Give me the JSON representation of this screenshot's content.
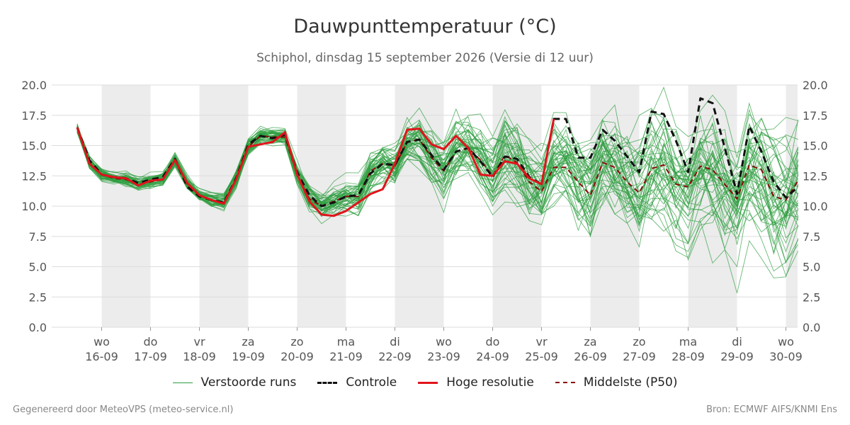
{
  "header": {
    "title": "Dauwpunttemperatuur (°C)",
    "subtitle": "Schiphol, dinsdag 15 september 2026 (Versie di 12 uur)"
  },
  "footer": {
    "left": "Gegenereerd door MeteoVPS (meteo-service.nl)",
    "right": "Bron: ECMWF AIFS/KNMI Ens"
  },
  "legend": [
    {
      "key": "ens",
      "label": "Verstoorde runs"
    },
    {
      "key": "control",
      "label": "Controle"
    },
    {
      "key": "hires",
      "label": "Hoge resolutie"
    },
    {
      "key": "p50",
      "label": "Middelste (P50)"
    }
  ],
  "colors": {
    "ensemble": "#2e9e40",
    "control": "#111111",
    "hires": "#e0141c",
    "p50": "#8b0a0a",
    "weekend_band": "#ececec",
    "grid": "#dddddd"
  },
  "chart_data": {
    "type": "line",
    "title": "Dauwpunttemperatuur (°C)",
    "ylim": [
      0,
      20
    ],
    "yticks": [
      "0.0",
      "2.5",
      "5.0",
      "7.5",
      "10.0",
      "12.5",
      "15.0",
      "17.5",
      "20.0"
    ],
    "x_start": "15-09 18u",
    "x_step_hours": 6,
    "day_ticks": [
      {
        "day": "wo",
        "date": "16-09"
      },
      {
        "day": "do",
        "date": "17-09"
      },
      {
        "day": "vr",
        "date": "18-09"
      },
      {
        "day": "za",
        "date": "19-09"
      },
      {
        "day": "zo",
        "date": "20-09"
      },
      {
        "day": "ma",
        "date": "21-09"
      },
      {
        "day": "di",
        "date": "22-09"
      },
      {
        "day": "wo",
        "date": "23-09"
      },
      {
        "day": "do",
        "date": "24-09"
      },
      {
        "day": "vr",
        "date": "25-09"
      },
      {
        "day": "za",
        "date": "26-09"
      },
      {
        "day": "zo",
        "date": "27-09"
      },
      {
        "day": "ma",
        "date": "28-09"
      },
      {
        "day": "di",
        "date": "29-09"
      },
      {
        "day": "wo",
        "date": "30-09"
      }
    ],
    "series": [
      {
        "name": "Controle",
        "style": "dashed-black",
        "values": [
          16.5,
          13.8,
          12.6,
          12.4,
          12.3,
          11.9,
          12.2,
          12.4,
          13.9,
          11.6,
          10.8,
          10.5,
          10.3,
          12.3,
          15.1,
          15.8,
          15.6,
          15.9,
          12.8,
          10.9,
          10.0,
          10.3,
          10.8,
          10.9,
          12.7,
          13.5,
          13.4,
          15.3,
          15.5,
          14.2,
          13.0,
          14.5,
          14.8,
          13.7,
          12.4,
          14.1,
          13.9,
          12.4,
          11.8,
          17.2,
          17.2,
          14.0,
          14.0,
          16.3,
          15.4,
          14.1,
          12.8,
          17.8,
          17.6,
          15.4,
          12.8,
          18.9,
          18.5,
          14.8,
          11.0,
          16.6,
          14.5,
          12.0,
          10.7,
          11.6
        ]
      },
      {
        "name": "Hoge resolutie",
        "style": "solid-red",
        "values": [
          16.5,
          13.5,
          12.6,
          12.4,
          12.3,
          11.7,
          12.1,
          12.2,
          13.8,
          11.9,
          10.9,
          10.5,
          10.2,
          12.2,
          14.9,
          15.1,
          15.3,
          16.1,
          12.6,
          10.4,
          9.3,
          9.2,
          9.6,
          10.3,
          11.0,
          11.4,
          13.5,
          16.3,
          16.4,
          15.1,
          14.7,
          15.8,
          14.8,
          12.6,
          12.5,
          13.7,
          13.5,
          12.3,
          11.8,
          17.2
        ]
      },
      {
        "name": "Middelste (P50)",
        "style": "dashed-darkred",
        "values": [
          16.4,
          13.6,
          12.6,
          12.3,
          12.2,
          11.8,
          12.0,
          12.2,
          13.8,
          11.8,
          10.9,
          10.5,
          10.3,
          12.2,
          14.9,
          15.8,
          15.7,
          15.7,
          12.6,
          10.6,
          10.0,
          10.4,
          10.8,
          10.8,
          12.9,
          13.5,
          13.3,
          15.3,
          15.5,
          14.0,
          12.9,
          14.5,
          14.8,
          13.8,
          12.5,
          14.2,
          13.6,
          12.0,
          11.2,
          13.2,
          13.2,
          12.0,
          10.9,
          13.6,
          13.2,
          12.0,
          11.1,
          13.1,
          13.4,
          11.8,
          11.6,
          13.3,
          13.0,
          11.8,
          10.6,
          13.4,
          13.0,
          10.8,
          10.5,
          12.1
        ]
      }
    ]
  }
}
